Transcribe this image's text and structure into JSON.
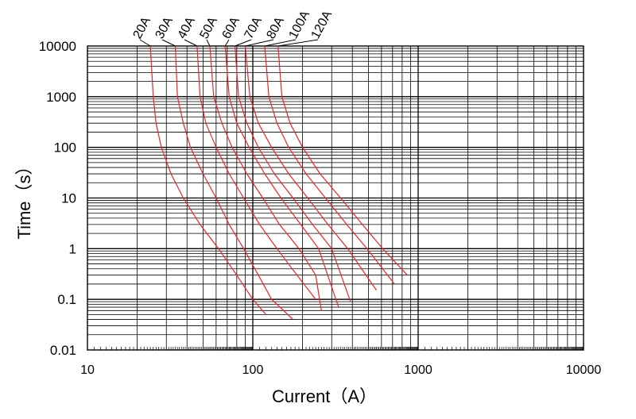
{
  "chart_data": {
    "type": "line",
    "title": "",
    "xlabel": "Current（A）",
    "ylabel": "Time（s）",
    "xscale": "log",
    "yscale": "log",
    "xlim": [
      10,
      10000
    ],
    "ylim": [
      0.01,
      10000
    ],
    "xticks": [
      "10",
      "100",
      "1000",
      "10000"
    ],
    "yticks": [
      "10000",
      "1000",
      "100",
      "10",
      "1",
      "0.1",
      "0.01"
    ],
    "grid": true,
    "line_color": "#e8242c",
    "series": [
      {
        "name": "20A",
        "x": [
          24,
          25,
          26,
          28,
          32,
          38,
          48,
          62,
          80,
          100,
          120
        ],
        "y": [
          10000,
          1000,
          300,
          100,
          30,
          10,
          3,
          1,
          0.3,
          0.1,
          0.05
        ]
      },
      {
        "name": "30A",
        "x": [
          34,
          35,
          38,
          42,
          50,
          60,
          72,
          88,
          108,
          130,
          175
        ],
        "y": [
          10000,
          1000,
          300,
          100,
          30,
          10,
          3,
          1,
          0.3,
          0.1,
          0.04
        ]
      },
      {
        "name": "40A",
        "x": [
          46,
          48,
          52,
          60,
          72,
          88,
          110,
          140,
          185,
          240
        ],
        "y": [
          10000,
          1000,
          300,
          100,
          30,
          10,
          3,
          1,
          0.3,
          0.1
        ]
      },
      {
        "name": "50A",
        "x": [
          55,
          58,
          65,
          75,
          92,
          115,
          145,
          190,
          240,
          260
        ],
        "y": [
          10000,
          1000,
          300,
          100,
          30,
          10,
          3,
          1,
          0.3,
          0.06
        ]
      },
      {
        "name": "60A",
        "x": [
          68,
          72,
          80,
          95,
          118,
          148,
          195,
          250,
          330
        ],
        "y": [
          10000,
          1000,
          300,
          100,
          30,
          10,
          3,
          1,
          0.07
        ]
      },
      {
        "name": "70A",
        "x": [
          78,
          82,
          92,
          108,
          135,
          175,
          230,
          300,
          390
        ],
        "y": [
          10000,
          1000,
          300,
          100,
          30,
          10,
          3,
          1,
          0.09
        ]
      },
      {
        "name": "80A",
        "x": [
          90,
          96,
          108,
          130,
          165,
          215,
          285,
          375,
          560
        ],
        "y": [
          10000,
          1000,
          300,
          100,
          30,
          10,
          3,
          1,
          0.15
        ]
      },
      {
        "name": "100A",
        "x": [
          118,
          125,
          140,
          165,
          210,
          275,
          370,
          490,
          720
        ],
        "y": [
          10000,
          1000,
          300,
          100,
          30,
          10,
          3,
          1,
          0.2
        ]
      },
      {
        "name": "120A",
        "x": [
          142,
          150,
          168,
          200,
          255,
          340,
          460,
          610,
          860
        ],
        "y": [
          10000,
          1000,
          300,
          100,
          30,
          10,
          3,
          1,
          0.3
        ]
      }
    ]
  }
}
